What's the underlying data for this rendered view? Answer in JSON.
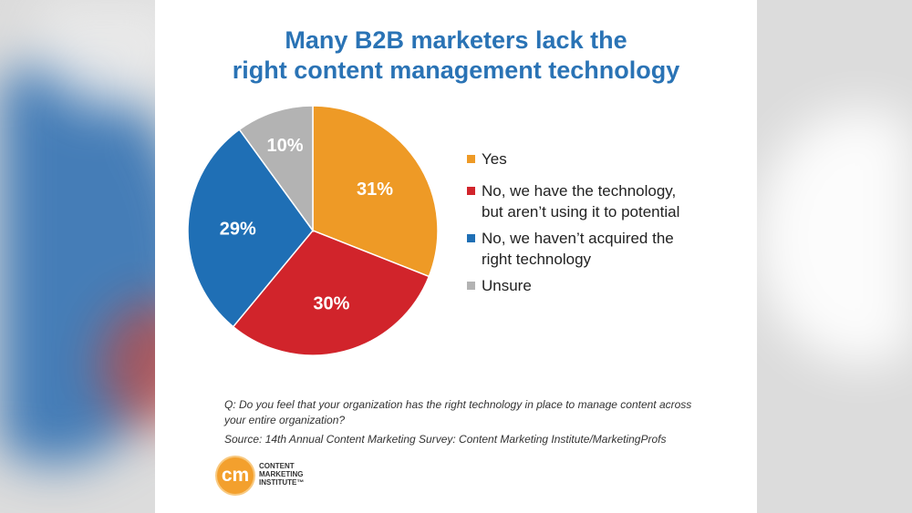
{
  "title_lines": [
    "Many B2B marketers lack the",
    "right content management technology"
  ],
  "chart_data": {
    "type": "pie",
    "title": "Many B2B marketers lack the right content management technology",
    "legend_position": "right",
    "slices": [
      {
        "label_lines": [
          "Yes"
        ],
        "value": 31,
        "display": "31%",
        "color": "#ee9a26"
      },
      {
        "label_lines": [
          "No, we have the technology,",
          "but aren’t using it to potential"
        ],
        "value": 30,
        "display": "30%",
        "color": "#d1242b"
      },
      {
        "label_lines": [
          "No, we haven’t acquired the",
          "right technology"
        ],
        "value": 29,
        "display": "29%",
        "color": "#1f6fb5"
      },
      {
        "label_lines": [
          "Unsure"
        ],
        "value": 10,
        "display": "10%",
        "color": "#b3b3b3"
      }
    ]
  },
  "question_lines": [
    "Q: Do you feel that your organization has the right technology in place to manage content across",
    "your entire organization?"
  ],
  "source": "Source: 14th Annual Content Marketing Survey: Content Marketing Institute/MarketingProfs",
  "logo": {
    "mark": "cm",
    "text_lines": [
      "CONTENT",
      "MARKETING",
      "INSTITUTE™"
    ]
  }
}
